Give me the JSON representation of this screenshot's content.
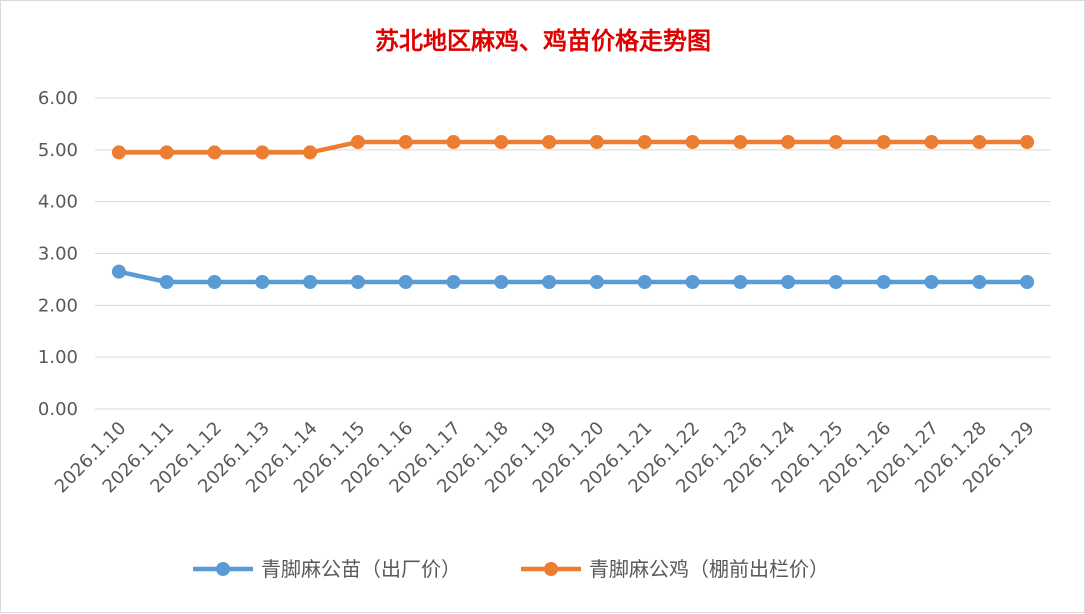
{
  "chart_data": {
    "type": "line",
    "title": "苏北地区麻鸡、鸡苗价格走势图",
    "xlabel": "",
    "ylabel": "",
    "categories": [
      "2026.1.10",
      "2026.1.11",
      "2026.1.12",
      "2026.1.13",
      "2026.1.14",
      "2026.1.15",
      "2026.1.16",
      "2026.1.17",
      "2026.1.18",
      "2026.1.19",
      "2026.1.20",
      "2026.1.21",
      "2026.1.22",
      "2026.1.23",
      "2026.1.24",
      "2026.1.25",
      "2026.1.26",
      "2026.1.27",
      "2026.1.28",
      "2026.1.29"
    ],
    "ylim": [
      0,
      6
    ],
    "yticks": [
      "0.00",
      "1.00",
      "2.00",
      "3.00",
      "4.00",
      "5.00",
      "6.00"
    ],
    "grid": true,
    "legend_position": "bottom",
    "series": [
      {
        "name": "青脚麻公苗（出厂价）",
        "color": "#5b9bd5",
        "values": [
          2.65,
          2.45,
          2.45,
          2.45,
          2.45,
          2.45,
          2.45,
          2.45,
          2.45,
          2.45,
          2.45,
          2.45,
          2.45,
          2.45,
          2.45,
          2.45,
          2.45,
          2.45,
          2.45,
          2.45
        ]
      },
      {
        "name": "青脚麻公鸡（棚前出栏价）",
        "color": "#ed7d31",
        "values": [
          4.95,
          4.95,
          4.95,
          4.95,
          4.95,
          5.15,
          5.15,
          5.15,
          5.15,
          5.15,
          5.15,
          5.15,
          5.15,
          5.15,
          5.15,
          5.15,
          5.15,
          5.15,
          5.15,
          5.15
        ]
      }
    ]
  }
}
